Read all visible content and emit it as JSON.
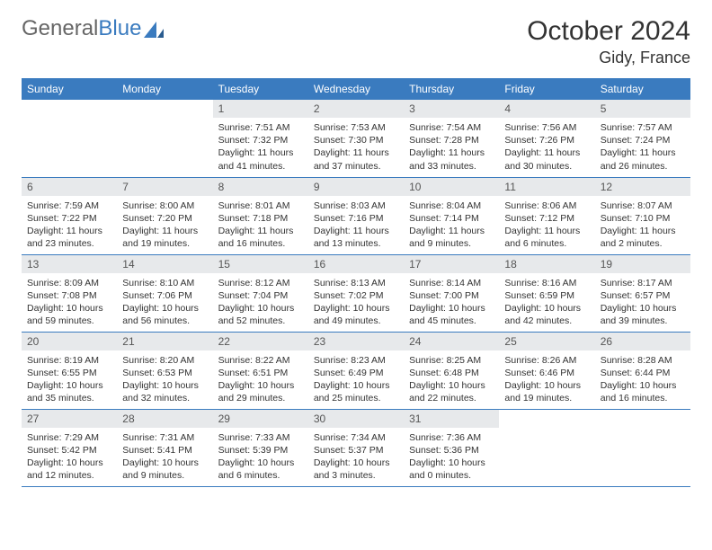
{
  "logo": {
    "part1": "General",
    "part2": "Blue"
  },
  "title": "October 2024",
  "location": "Gidy, France",
  "colors": {
    "header_bg": "#3a7bbf",
    "header_fg": "#ffffff",
    "daynum_bg": "#e7e9eb",
    "rule": "#3a7bbf",
    "text": "#333333"
  },
  "weekdays": [
    "Sunday",
    "Monday",
    "Tuesday",
    "Wednesday",
    "Thursday",
    "Friday",
    "Saturday"
  ],
  "weeks": [
    [
      null,
      null,
      {
        "n": "1",
        "sr": "7:51 AM",
        "ss": "7:32 PM",
        "dl": "11 hours and 41 minutes."
      },
      {
        "n": "2",
        "sr": "7:53 AM",
        "ss": "7:30 PM",
        "dl": "11 hours and 37 minutes."
      },
      {
        "n": "3",
        "sr": "7:54 AM",
        "ss": "7:28 PM",
        "dl": "11 hours and 33 minutes."
      },
      {
        "n": "4",
        "sr": "7:56 AM",
        "ss": "7:26 PM",
        "dl": "11 hours and 30 minutes."
      },
      {
        "n": "5",
        "sr": "7:57 AM",
        "ss": "7:24 PM",
        "dl": "11 hours and 26 minutes."
      }
    ],
    [
      {
        "n": "6",
        "sr": "7:59 AM",
        "ss": "7:22 PM",
        "dl": "11 hours and 23 minutes."
      },
      {
        "n": "7",
        "sr": "8:00 AM",
        "ss": "7:20 PM",
        "dl": "11 hours and 19 minutes."
      },
      {
        "n": "8",
        "sr": "8:01 AM",
        "ss": "7:18 PM",
        "dl": "11 hours and 16 minutes."
      },
      {
        "n": "9",
        "sr": "8:03 AM",
        "ss": "7:16 PM",
        "dl": "11 hours and 13 minutes."
      },
      {
        "n": "10",
        "sr": "8:04 AM",
        "ss": "7:14 PM",
        "dl": "11 hours and 9 minutes."
      },
      {
        "n": "11",
        "sr": "8:06 AM",
        "ss": "7:12 PM",
        "dl": "11 hours and 6 minutes."
      },
      {
        "n": "12",
        "sr": "8:07 AM",
        "ss": "7:10 PM",
        "dl": "11 hours and 2 minutes."
      }
    ],
    [
      {
        "n": "13",
        "sr": "8:09 AM",
        "ss": "7:08 PM",
        "dl": "10 hours and 59 minutes."
      },
      {
        "n": "14",
        "sr": "8:10 AM",
        "ss": "7:06 PM",
        "dl": "10 hours and 56 minutes."
      },
      {
        "n": "15",
        "sr": "8:12 AM",
        "ss": "7:04 PM",
        "dl": "10 hours and 52 minutes."
      },
      {
        "n": "16",
        "sr": "8:13 AM",
        "ss": "7:02 PM",
        "dl": "10 hours and 49 minutes."
      },
      {
        "n": "17",
        "sr": "8:14 AM",
        "ss": "7:00 PM",
        "dl": "10 hours and 45 minutes."
      },
      {
        "n": "18",
        "sr": "8:16 AM",
        "ss": "6:59 PM",
        "dl": "10 hours and 42 minutes."
      },
      {
        "n": "19",
        "sr": "8:17 AM",
        "ss": "6:57 PM",
        "dl": "10 hours and 39 minutes."
      }
    ],
    [
      {
        "n": "20",
        "sr": "8:19 AM",
        "ss": "6:55 PM",
        "dl": "10 hours and 35 minutes."
      },
      {
        "n": "21",
        "sr": "8:20 AM",
        "ss": "6:53 PM",
        "dl": "10 hours and 32 minutes."
      },
      {
        "n": "22",
        "sr": "8:22 AM",
        "ss": "6:51 PM",
        "dl": "10 hours and 29 minutes."
      },
      {
        "n": "23",
        "sr": "8:23 AM",
        "ss": "6:49 PM",
        "dl": "10 hours and 25 minutes."
      },
      {
        "n": "24",
        "sr": "8:25 AM",
        "ss": "6:48 PM",
        "dl": "10 hours and 22 minutes."
      },
      {
        "n": "25",
        "sr": "8:26 AM",
        "ss": "6:46 PM",
        "dl": "10 hours and 19 minutes."
      },
      {
        "n": "26",
        "sr": "8:28 AM",
        "ss": "6:44 PM",
        "dl": "10 hours and 16 minutes."
      }
    ],
    [
      {
        "n": "27",
        "sr": "7:29 AM",
        "ss": "5:42 PM",
        "dl": "10 hours and 12 minutes."
      },
      {
        "n": "28",
        "sr": "7:31 AM",
        "ss": "5:41 PM",
        "dl": "10 hours and 9 minutes."
      },
      {
        "n": "29",
        "sr": "7:33 AM",
        "ss": "5:39 PM",
        "dl": "10 hours and 6 minutes."
      },
      {
        "n": "30",
        "sr": "7:34 AM",
        "ss": "5:37 PM",
        "dl": "10 hours and 3 minutes."
      },
      {
        "n": "31",
        "sr": "7:36 AM",
        "ss": "5:36 PM",
        "dl": "10 hours and 0 minutes."
      },
      null,
      null
    ]
  ],
  "labels": {
    "sunrise": "Sunrise:",
    "sunset": "Sunset:",
    "daylight": "Daylight:"
  }
}
